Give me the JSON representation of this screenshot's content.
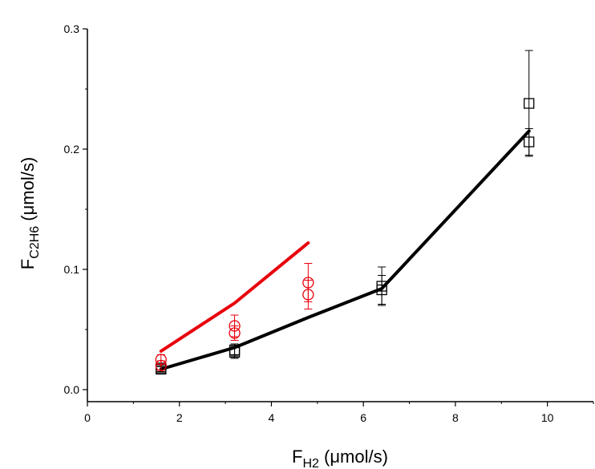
{
  "chart_data": {
    "type": "scatter",
    "x_axis": {
      "label_main": "F",
      "label_sub": "H2",
      "label_unit": " (μmol/s)",
      "range": [
        0,
        11
      ],
      "ticks": [
        0,
        2,
        4,
        6,
        8,
        10
      ],
      "tick_labels": [
        "0",
        "2",
        "4",
        "6",
        "8",
        "10"
      ]
    },
    "y_axis": {
      "label_main": "F",
      "label_sub": "C2H6",
      "label_unit": " (μmol/s)",
      "range": [
        0,
        0.3
      ],
      "ticks": [
        0.0,
        0.1,
        0.2,
        0.3
      ],
      "tick_labels": [
        "0.0",
        "0.1",
        "0.2",
        "0.3"
      ]
    },
    "grid": false,
    "series": [
      {
        "marker": "square",
        "color": "#000000",
        "points": [
          {
            "x": 1.6,
            "y": 0.017,
            "err": 0.002
          },
          {
            "x": 1.6,
            "y": 0.018,
            "err": 0.002
          },
          {
            "x": 3.2,
            "y": 0.031,
            "err": 0.005
          },
          {
            "x": 3.2,
            "y": 0.033,
            "err": 0.005
          },
          {
            "x": 6.4,
            "y": 0.083,
            "err": 0.012
          },
          {
            "x": 6.4,
            "y": 0.086,
            "err": 0.016
          },
          {
            "x": 9.6,
            "y": 0.206,
            "err": 0.011
          },
          {
            "x": 9.6,
            "y": 0.238,
            "err": 0.044
          }
        ]
      },
      {
        "marker": "circle",
        "color": "#e8000b",
        "points": [
          {
            "x": 1.6,
            "y": 0.02,
            "err": 0.004
          },
          {
            "x": 1.6,
            "y": 0.025,
            "err": 0.004
          },
          {
            "x": 3.2,
            "y": 0.047,
            "err": 0.006
          },
          {
            "x": 3.2,
            "y": 0.053,
            "err": 0.009
          },
          {
            "x": 4.8,
            "y": 0.079,
            "err": 0.012
          },
          {
            "x": 4.8,
            "y": 0.089,
            "err": 0.016
          }
        ]
      }
    ],
    "lines": [
      {
        "color": "#000000",
        "points": [
          {
            "x": 1.6,
            "y": 0.017
          },
          {
            "x": 3.2,
            "y": 0.035
          },
          {
            "x": 4.8,
            "y": 0.06
          },
          {
            "x": 6.4,
            "y": 0.084
          },
          {
            "x": 9.6,
            "y": 0.215
          }
        ]
      },
      {
        "color": "#e8000b",
        "points": [
          {
            "x": 1.6,
            "y": 0.032
          },
          {
            "x": 3.2,
            "y": 0.072
          },
          {
            "x": 4.8,
            "y": 0.122
          }
        ]
      }
    ]
  }
}
